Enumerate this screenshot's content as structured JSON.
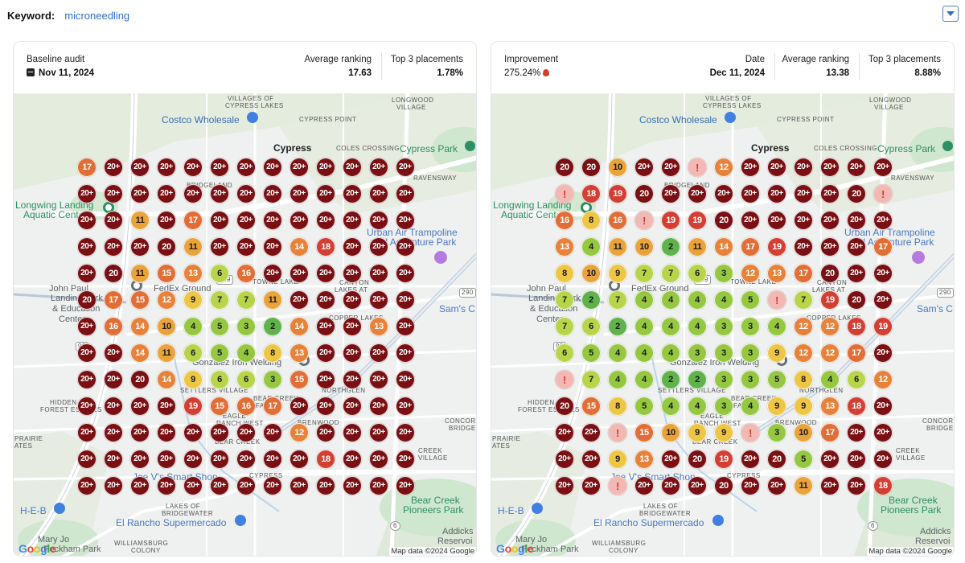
{
  "keyword": {
    "label": "Keyword:",
    "value": "microneedling"
  },
  "colors": {
    "r20": "#7a1013",
    "r18": "#d43f34",
    "r15": "#e36d36",
    "r13": "#e8823a",
    "r11": "#eaa33a",
    "r9": "#eec643",
    "r7": "#b8d44a",
    "r4": "#95c840",
    "r2": "#5fb34a",
    "alert": "#f2b8b4",
    "alert_text": "#d93b2b"
  },
  "baseline": {
    "title": "Baseline audit",
    "date": "Nov 11, 2024",
    "avg_label": "Average ranking",
    "avg_value": "17.63",
    "top3_label": "Top 3 placements",
    "top3_value": "1.78%",
    "grid": [
      [
        "17",
        "20+",
        "20+",
        "20+",
        "20+",
        "20+",
        "20+",
        "20+",
        "20+",
        "20+",
        "20+",
        "20+",
        "20+"
      ],
      [
        "20+",
        "20+",
        "20+",
        "20+",
        "20+",
        "20+",
        "20+",
        "20+",
        "20+",
        "20+",
        "20+",
        "20+",
        "20+"
      ],
      [
        "20+",
        "20+",
        "11",
        "20+",
        "17",
        "20+",
        "20+",
        "20+",
        "20+",
        "20+",
        "20+",
        "20+",
        "20+"
      ],
      [
        "20+",
        "20+",
        "20+",
        "20",
        "11",
        "20+",
        "20+",
        "20+",
        "14",
        "18",
        "20+",
        "20+",
        "20+"
      ],
      [
        "20+",
        "20",
        "11",
        "15",
        "13",
        "6",
        "16",
        "20+",
        "20+",
        "20+",
        "20+",
        "20+",
        "20+"
      ],
      [
        "20",
        "17",
        "15",
        "12",
        "9",
        "7",
        "7",
        "11",
        "20+",
        "20+",
        "20+",
        "20+",
        "20+"
      ],
      [
        "20+",
        "16",
        "14",
        "10",
        "4",
        "5",
        "3",
        "2",
        "14",
        "20+",
        "20+",
        "13",
        "20+"
      ],
      [
        "20+",
        "20+",
        "14",
        "11",
        "6",
        "5",
        "4",
        "8",
        "13",
        "20+",
        "20+",
        "20+",
        "20+"
      ],
      [
        "20+",
        "20+",
        "20",
        "14",
        "9",
        "6",
        "6",
        "3",
        "15",
        "20+",
        "20+",
        "20+",
        "20+"
      ],
      [
        "20+",
        "20+",
        "20+",
        "20+",
        "19",
        "15",
        "16",
        "17",
        "20+",
        "20+",
        "20+",
        "20+",
        "20+"
      ],
      [
        "20+",
        "20+",
        "20+",
        "20+",
        "20+",
        "20+",
        "20+",
        "20+",
        "12",
        "20+",
        "20+",
        "20+",
        "20+"
      ],
      [
        "20+",
        "20+",
        "20+",
        "20+",
        "20+",
        "20+",
        "20+",
        "20+",
        "20+",
        "18",
        "20+",
        "20+",
        "20+"
      ],
      [
        "20+",
        "20+",
        "20+",
        "20+",
        "20+",
        "20+",
        "20+",
        "20+",
        "20+",
        "20+",
        "20+",
        "20+",
        "20+"
      ]
    ]
  },
  "current": {
    "title": "Improvement",
    "improvement": "275.24%",
    "date_label": "Date",
    "date": "Dec 11, 2024",
    "avg_label": "Average ranking",
    "avg_value": "13.38",
    "top3_label": "Top 3 placements",
    "top3_value": "8.88%",
    "grid": [
      [
        "20",
        "20",
        "10",
        "20+",
        "20+",
        "!",
        "12",
        "20+",
        "20+",
        "20+",
        "20+",
        "20+",
        "20+"
      ],
      [
        "!",
        "18",
        "19",
        "20",
        "20+",
        "20+",
        "20+",
        "20+",
        "20+",
        "20+",
        "20+",
        "20",
        "!"
      ],
      [
        "16",
        "8",
        "16",
        "!",
        "19",
        "19",
        "20",
        "20+",
        "20+",
        "20+",
        "20+",
        "20+",
        "20+"
      ],
      [
        "13",
        "4",
        "11",
        "10",
        "2",
        "11",
        "14",
        "17",
        "19",
        "20+",
        "20+",
        "20+",
        "17"
      ],
      [
        "8",
        "10",
        "9",
        "7",
        "7",
        "6",
        "3",
        "12",
        "13",
        "17",
        "20",
        "20+",
        "20+"
      ],
      [
        "7",
        "2",
        "7",
        "4",
        "4",
        "4",
        "4",
        "5",
        "!",
        "7",
        "19",
        "20",
        "20+"
      ],
      [
        "7",
        "6",
        "2",
        "4",
        "4",
        "4",
        "3",
        "3",
        "4",
        "12",
        "12",
        "18",
        "19"
      ],
      [
        "6",
        "5",
        "4",
        "4",
        "4",
        "3",
        "3",
        "3",
        "9",
        "12",
        "12",
        "17",
        "20+"
      ],
      [
        "!",
        "7",
        "4",
        "4",
        "2",
        "2",
        "3",
        "3",
        "5",
        "8",
        "4",
        "6",
        "12"
      ],
      [
        "20",
        "15",
        "8",
        "5",
        "4",
        "4",
        "3",
        "4",
        "9",
        "9",
        "13",
        "18",
        "20+"
      ],
      [
        "20+",
        "20+",
        "!",
        "15",
        "10",
        "9",
        "9",
        "!",
        "3",
        "10",
        "17",
        "20+",
        "20+"
      ],
      [
        "20+",
        "20+",
        "9",
        "13",
        "20+",
        "20",
        "19",
        "20+",
        "20",
        "5",
        "20+",
        "20+",
        "20+"
      ],
      [
        "20+",
        "20+",
        "!",
        "20+",
        "20+",
        "20+",
        "20",
        "20+",
        "20+",
        "11",
        "20+",
        "20+",
        "18"
      ]
    ]
  },
  "map": {
    "labels": {
      "villages_cypress_lakes": [
        "VILLAGES OF",
        "CYPRESS LAKES"
      ],
      "longwood_village": [
        "LONGWOOD",
        "VILLAGE"
      ],
      "costco": "Costco Wholesale",
      "cypress_point": "CYPRESS POINT",
      "cypress": "Cypress",
      "coles_crossing": "COLES CROSSING",
      "cypress_park": "Cypress Park",
      "ravensway": "RAVENSWAY",
      "bridgeland": "BRIDGELAND",
      "longwing": [
        "Longwing Landing",
        "Aquatic Center"
      ],
      "urban_air": [
        "Urban Air Trampoline",
        "and Adventure Park"
      ],
      "towne_lake": "TOWNE LAKE",
      "canyon_lakes": [
        "CANYON",
        "LAKES AT"
      ],
      "fedex": "FedEx Ground",
      "john_paul": [
        "John Paul",
        "Landing Park",
        "& Education",
        "Center"
      ],
      "sams": "Sam's C",
      "copper_lakes": "COPPER LAKES",
      "gonzalez": "Gonzalez Iron Welding",
      "settlers_village": "SETTLERS VILLAGE",
      "northglen": "NORTHGLEN",
      "bear_creek_farms": [
        "BEAR CREEK",
        "FARMS"
      ],
      "hidden_forest": [
        "HIDDEN",
        "FOREST ESTATES"
      ],
      "eagle_ranch": [
        "EAGLE",
        "RANCH WEST"
      ],
      "bear_creek": "BEAR CREEK",
      "brenwood": "BRENWOOD",
      "concord_bridge": [
        "CONCORD",
        "BRIDGE"
      ],
      "prairie": [
        "PRAIRIE",
        "ATES"
      ],
      "joe_v": "Joe V's Smart Shop",
      "cypress_s": "CYPRESS",
      "creek_village": [
        "CREEK",
        "VILLAGE"
      ],
      "heb": "H-E-B",
      "bear_creek_pioneers": [
        "Bear Creek",
        "Pioneers Park"
      ],
      "lakes_bridgewater": [
        "LAKES OF",
        "BRIDGEWATER"
      ],
      "el_rancho": "El Rancho Supermercado",
      "addicks": [
        "Addicks",
        "Reservoi"
      ],
      "mary_jo": [
        "Mary Jo",
        "Peckham Park"
      ],
      "williamsburg": [
        "WILLIAMSBURG",
        "COLONY"
      ],
      "hwy_290": "290",
      "hwy_99": "99",
      "hwy_6": "6",
      "hwy_529": "529",
      "credit": "Map data ©2024 Google",
      "google": "Google"
    }
  }
}
